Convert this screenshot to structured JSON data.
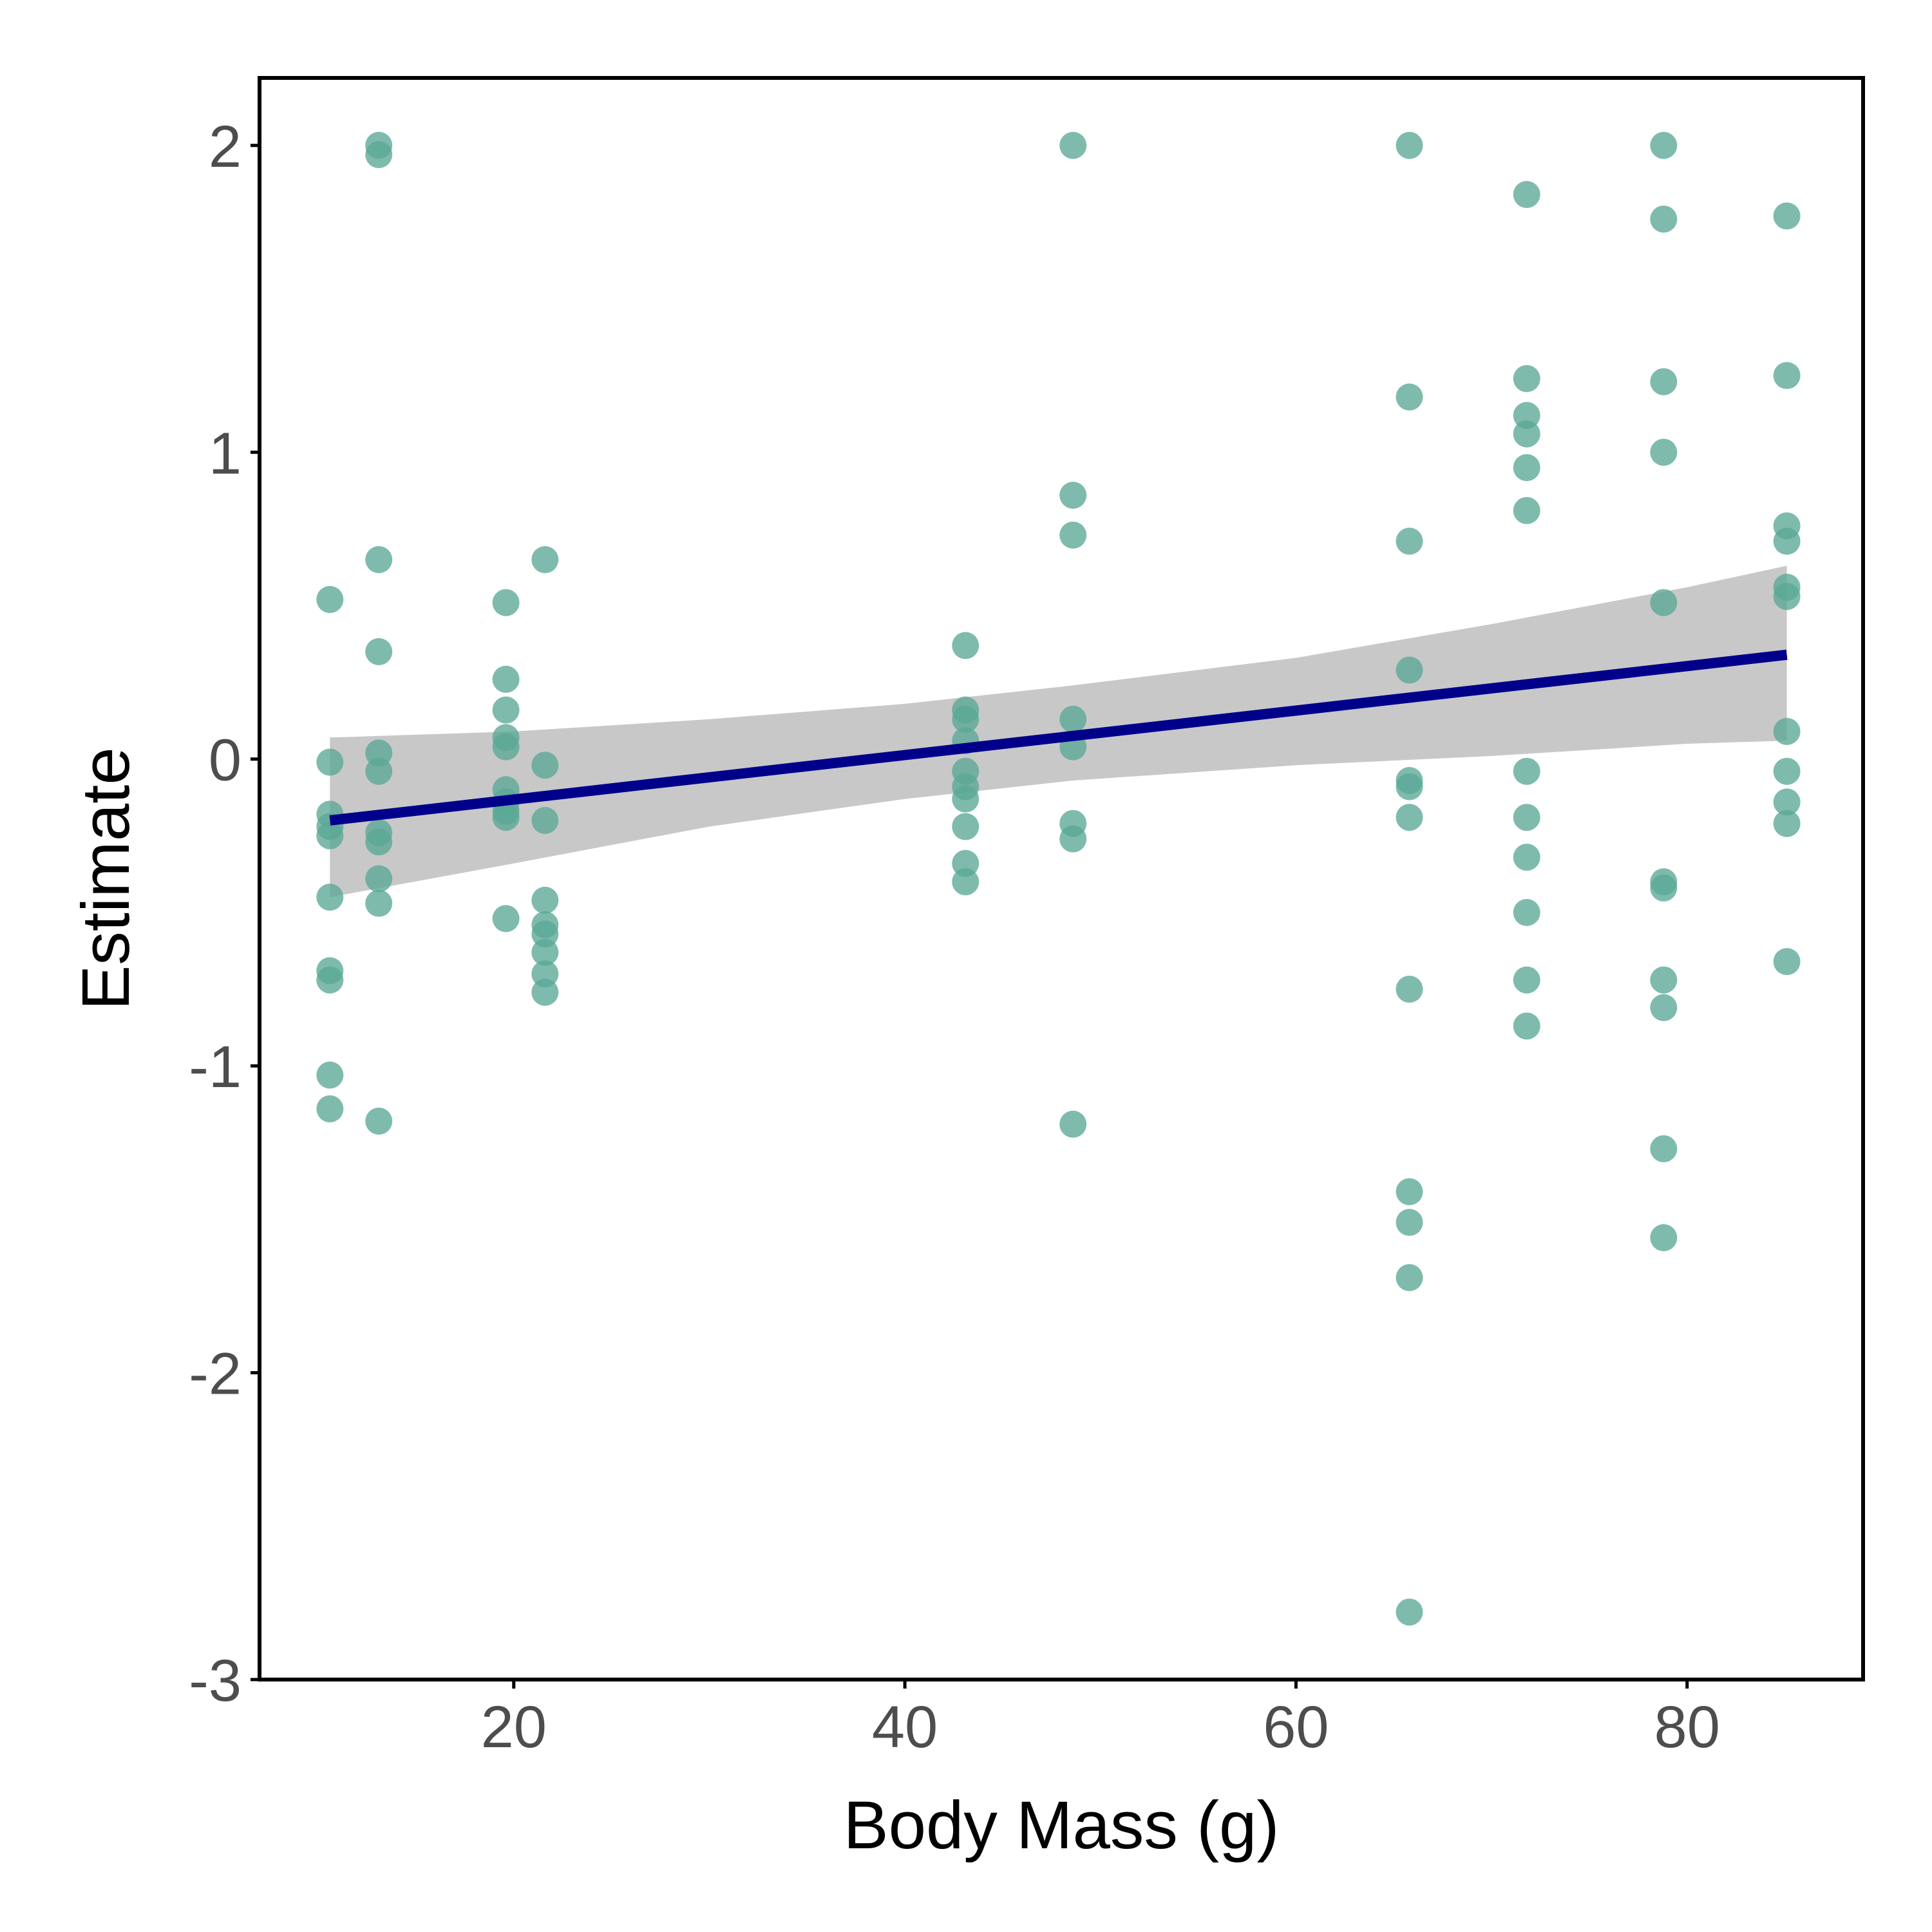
{
  "chart_data": {
    "type": "scatter",
    "xlabel": "Body Mass (g)",
    "ylabel": "Estimate",
    "xlim": [
      7.0,
      89.0
    ],
    "ylim": [
      -3,
      2.22
    ],
    "x_ticks": [
      20,
      40,
      60,
      80
    ],
    "x_tick_labels": [
      "20",
      "40",
      "60",
      "80"
    ],
    "y_ticks": [
      -3,
      -2,
      -1,
      0,
      1,
      2
    ],
    "y_tick_labels": [
      "-3",
      "-2",
      "-1",
      "0",
      "1",
      "2"
    ],
    "grid": false,
    "legend": "none",
    "colors": {
      "points": "#5aa896",
      "fit_line": "#00008b",
      "confidence_band": "#bebebe",
      "axis": "#000000",
      "tick_label": "#4d4d4d"
    },
    "series": [
      {
        "type": "scatter",
        "points": [
          [
            10.6,
            0.52
          ],
          [
            10.6,
            -0.01
          ],
          [
            10.6,
            -0.18
          ],
          [
            10.6,
            -0.22
          ],
          [
            10.6,
            -0.25
          ],
          [
            10.6,
            -0.45
          ],
          [
            10.6,
            -0.69
          ],
          [
            10.6,
            -0.72
          ],
          [
            10.6,
            -1.03
          ],
          [
            10.6,
            -1.14
          ],
          [
            13.1,
            2.0
          ],
          [
            13.1,
            1.97
          ],
          [
            13.1,
            0.65
          ],
          [
            13.1,
            0.35
          ],
          [
            13.1,
            0.02
          ],
          [
            13.1,
            -0.04
          ],
          [
            13.1,
            -0.24
          ],
          [
            13.1,
            -0.27
          ],
          [
            13.1,
            -0.39
          ],
          [
            13.1,
            -0.47
          ],
          [
            13.1,
            -1.18
          ],
          [
            19.6,
            0.51
          ],
          [
            19.6,
            0.26
          ],
          [
            19.6,
            0.16
          ],
          [
            19.6,
            0.07
          ],
          [
            19.6,
            0.04
          ],
          [
            19.6,
            -0.1
          ],
          [
            19.6,
            -0.14
          ],
          [
            19.6,
            -0.17
          ],
          [
            19.6,
            -0.19
          ],
          [
            19.6,
            -0.52
          ],
          [
            21.6,
            0.65
          ],
          [
            21.6,
            -0.02
          ],
          [
            21.6,
            -0.2
          ],
          [
            21.6,
            -0.46
          ],
          [
            21.6,
            -0.54
          ],
          [
            21.6,
            -0.57
          ],
          [
            21.6,
            -0.63
          ],
          [
            21.6,
            -0.7
          ],
          [
            21.6,
            -0.76
          ],
          [
            43.1,
            0.37
          ],
          [
            43.1,
            0.16
          ],
          [
            43.1,
            0.13
          ],
          [
            43.1,
            0.06
          ],
          [
            43.1,
            -0.04
          ],
          [
            43.1,
            -0.09
          ],
          [
            43.1,
            -0.13
          ],
          [
            43.1,
            -0.22
          ],
          [
            43.1,
            -0.34
          ],
          [
            43.1,
            -0.4
          ],
          [
            48.6,
            2.0
          ],
          [
            48.6,
            0.86
          ],
          [
            48.6,
            0.73
          ],
          [
            48.6,
            0.13
          ],
          [
            48.6,
            0.04
          ],
          [
            48.6,
            -0.21
          ],
          [
            48.6,
            -0.26
          ],
          [
            48.6,
            -1.19
          ],
          [
            65.8,
            2.0
          ],
          [
            65.8,
            1.18
          ],
          [
            65.8,
            0.71
          ],
          [
            65.8,
            0.29
          ],
          [
            65.8,
            -0.07
          ],
          [
            65.8,
            -0.09
          ],
          [
            65.8,
            -0.19
          ],
          [
            65.8,
            -0.75
          ],
          [
            65.8,
            -1.41
          ],
          [
            65.8,
            -1.51
          ],
          [
            65.8,
            -1.69
          ],
          [
            65.8,
            -2.78
          ],
          [
            71.8,
            1.84
          ],
          [
            71.8,
            1.24
          ],
          [
            71.8,
            1.12
          ],
          [
            71.8,
            1.06
          ],
          [
            71.8,
            0.95
          ],
          [
            71.8,
            0.81
          ],
          [
            71.8,
            -0.04
          ],
          [
            71.8,
            -0.19
          ],
          [
            71.8,
            -0.32
          ],
          [
            71.8,
            -0.5
          ],
          [
            71.8,
            -0.72
          ],
          [
            71.8,
            -0.87
          ],
          [
            78.8,
            2.0
          ],
          [
            78.8,
            1.76
          ],
          [
            78.8,
            1.23
          ],
          [
            78.8,
            1.0
          ],
          [
            78.8,
            0.51
          ],
          [
            78.8,
            -0.4
          ],
          [
            78.8,
            -0.42
          ],
          [
            78.8,
            -0.72
          ],
          [
            78.8,
            -0.81
          ],
          [
            78.8,
            -1.27
          ],
          [
            78.8,
            -1.56
          ],
          [
            85.1,
            1.77
          ],
          [
            85.1,
            1.25
          ],
          [
            85.1,
            0.76
          ],
          [
            85.1,
            0.71
          ],
          [
            85.1,
            0.56
          ],
          [
            85.1,
            0.53
          ],
          [
            85.1,
            0.09
          ],
          [
            85.1,
            -0.04
          ],
          [
            85.1,
            -0.14
          ],
          [
            85.1,
            -0.21
          ],
          [
            85.1,
            -0.66
          ]
        ]
      },
      {
        "type": "line",
        "x": [
          10.6,
          85.1
        ],
        "y": [
          -0.2,
          0.34
        ]
      },
      {
        "type": "area",
        "x": [
          10.6,
          20,
          30,
          40,
          48.6,
          60,
          70,
          80,
          85.1
        ],
        "upper": [
          0.07,
          0.09,
          0.13,
          0.18,
          0.24,
          0.33,
          0.44,
          0.56,
          0.63
        ],
        "lower": [
          -0.45,
          -0.34,
          -0.22,
          -0.13,
          -0.07,
          -0.02,
          0.01,
          0.05,
          0.06
        ]
      }
    ]
  }
}
